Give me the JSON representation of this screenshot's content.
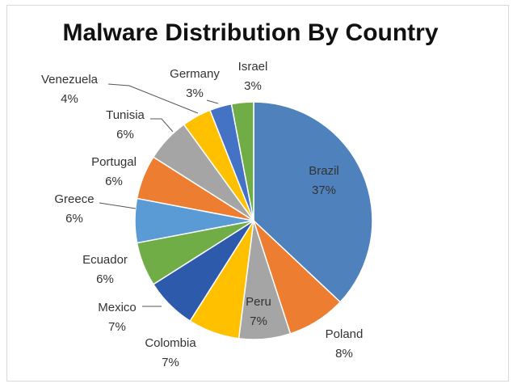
{
  "chart_data": {
    "type": "pie",
    "title": "Malware Distribution By Country",
    "start_angle_deg": 0,
    "direction": "clockwise",
    "slices": [
      {
        "label": "Brazil",
        "percent_label": "37%",
        "value": 37,
        "color": "#4f81bd"
      },
      {
        "label": "Poland",
        "percent_label": "8%",
        "value": 8,
        "color": "#ed7d31"
      },
      {
        "label": "Peru",
        "percent_label": "7%",
        "value": 7,
        "color": "#a5a5a5"
      },
      {
        "label": "Colombia",
        "percent_label": "7%",
        "value": 7,
        "color": "#ffc000"
      },
      {
        "label": "Mexico",
        "percent_label": "7%",
        "value": 7,
        "color": "#2e5aac"
      },
      {
        "label": "Ecuador",
        "percent_label": "6%",
        "value": 6,
        "color": "#70ad47"
      },
      {
        "label": "Greece",
        "percent_label": "6%",
        "value": 6,
        "color": "#5b9bd5"
      },
      {
        "label": "Portugal",
        "percent_label": "6%",
        "value": 6,
        "color": "#ed7d31"
      },
      {
        "label": "Tunisia",
        "percent_label": "6%",
        "value": 6,
        "color": "#a5a5a5"
      },
      {
        "label": "Venezuela",
        "percent_label": "4%",
        "value": 4,
        "color": "#ffc000"
      },
      {
        "label": "Germany",
        "percent_label": "3%",
        "value": 3,
        "color": "#4472c4"
      },
      {
        "label": "Israel",
        "percent_label": "3%",
        "value": 3,
        "color": "#70ad47"
      }
    ]
  }
}
